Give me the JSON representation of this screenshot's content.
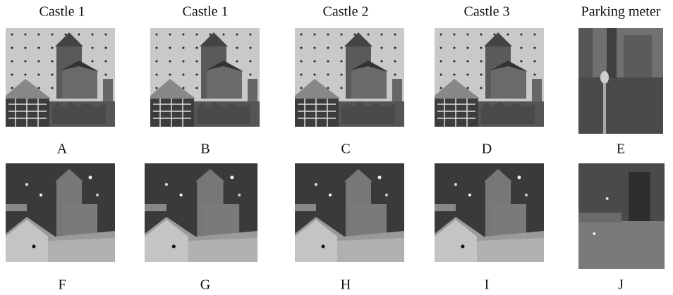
{
  "columns": [
    {
      "title": "Castle 1",
      "top_label": "A",
      "bottom_label": "F"
    },
    {
      "title": "Castle 1",
      "top_label": "B",
      "bottom_label": "G"
    },
    {
      "title": "Castle 2",
      "top_label": "C",
      "bottom_label": "H"
    },
    {
      "title": "Castle 3",
      "top_label": "D",
      "bottom_label": "I"
    },
    {
      "title": "Parking meter",
      "top_label": "E",
      "bottom_label": "J"
    }
  ]
}
